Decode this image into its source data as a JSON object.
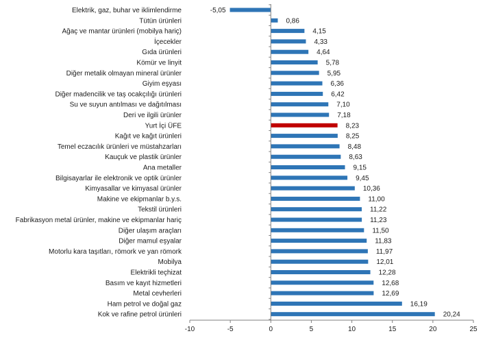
{
  "chart_data": {
    "type": "bar",
    "orientation": "horizontal",
    "categories": [
      "Elektrik, gaz, buhar ve iklimlendirme",
      "Tütün ürünleri",
      "Ağaç ve mantar ürünleri (mobilya hariç)",
      "İçecekler",
      "Gıda ürünleri",
      "Kömür ve linyit",
      "Diğer metalik olmayan mineral ürünler",
      "Giyim eşyası",
      "Diğer madencilik ve taş ocakçılığı ürünleri",
      "Su ve suyun antılması ve dağıtılması",
      "Deri ve ilgili ürünler",
      "Yurt İçi ÜFE",
      "Kağıt ve kağıt ürünleri",
      "Temel eczacılık ürünleri ve müstahzarları",
      "Kauçuk ve plastik ürünler",
      "Ana metaller",
      "Bilgisayarlar ile elektronik ve optik ürünler",
      "Kimyasallar ve kimyasal ürünler",
      "Makine ve ekipmanlar b.y.s.",
      "Tekstil ürünleri",
      "Fabrikasyon metal ürünler, makine ve ekipmanlar hariç",
      "Diğer ulaşım araçları",
      "Diğer mamul eşyalar",
      "Motorlu kara taşıtları, römork ve yan römork",
      "Mobilya",
      "Elektrikli teçhizat",
      "Basım ve kayıt hizmetleri",
      "Metal cevherleri",
      "Ham petrol ve doğal gaz",
      "Kok ve rafine petrol ürünleri"
    ],
    "values": [
      -5.05,
      0.86,
      4.15,
      4.33,
      4.64,
      5.78,
      5.95,
      6.36,
      6.42,
      7.1,
      7.18,
      8.23,
      8.25,
      8.48,
      8.63,
      9.15,
      9.45,
      10.36,
      11.0,
      11.22,
      11.23,
      11.5,
      11.83,
      11.97,
      12.01,
      12.28,
      12.68,
      12.69,
      16.19,
      20.24
    ],
    "value_labels": [
      "-5,05",
      "0,86",
      "4,15",
      "4,33",
      "4,64",
      "5,78",
      "5,95",
      "6,36",
      "6,42",
      "7,10",
      "7,18",
      "8,23",
      "8,25",
      "8,48",
      "8,63",
      "9,15",
      "9,45",
      "10,36",
      "11,00",
      "11,22",
      "11,23",
      "11,50",
      "11,83",
      "11,97",
      "12,01",
      "12,28",
      "12,68",
      "12,69",
      "16,19",
      "20,24"
    ],
    "highlight_category": "Yurt İçi ÜFE",
    "xlim": [
      -10,
      25
    ],
    "x_ticks": [
      -10,
      -5,
      0,
      5,
      10,
      15,
      20,
      25
    ],
    "grid": false,
    "legend": "none",
    "colors": {
      "bar": "#2e75b6",
      "highlight": "#c00000"
    }
  }
}
